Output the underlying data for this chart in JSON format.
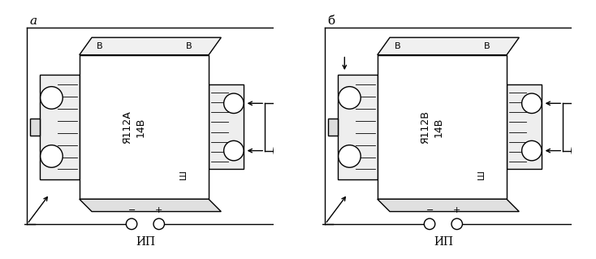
{
  "fig_width": 7.34,
  "fig_height": 3.19,
  "dpi": 100,
  "bg_color": "#ffffff",
  "lc": "#000000",
  "lw": 1.0,
  "label_a": "a",
  "label_b": "б",
  "ip": "ИП",
  "B": "В",
  "Sh": "Ш",
  "dev_a": "Я112А\n14В",
  "dev_b": "Я112В\n14В"
}
